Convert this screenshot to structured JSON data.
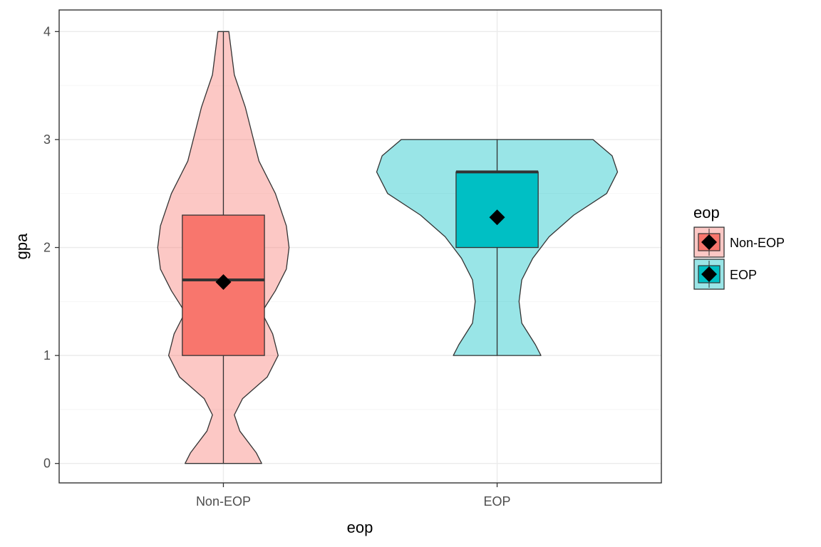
{
  "chart_data": {
    "type": "violin",
    "xlabel": "eop",
    "ylabel": "gpa",
    "categories": [
      "Non-EOP",
      "EOP"
    ],
    "ylim": [
      -0.18,
      4.2
    ],
    "yticks": [
      0,
      1,
      2,
      3,
      4
    ],
    "grid": true,
    "legend": {
      "title": "eop",
      "placement": "right",
      "entries": [
        "Non-EOP",
        "EOP"
      ]
    },
    "series": [
      {
        "name": "Non-EOP",
        "color": "#F8766D",
        "violin": {
          "y": [
            0.0,
            0.1,
            0.3,
            0.45,
            0.6,
            0.8,
            1.0,
            1.2,
            1.4,
            1.6,
            1.8,
            2.0,
            2.2,
            2.5,
            2.8,
            3.0,
            3.3,
            3.6,
            4.0
          ],
          "half_width": [
            0.14,
            0.12,
            0.06,
            0.04,
            0.07,
            0.16,
            0.2,
            0.18,
            0.14,
            0.19,
            0.23,
            0.24,
            0.23,
            0.19,
            0.13,
            0.11,
            0.08,
            0.04,
            0.02
          ]
        },
        "box": {
          "min": 0,
          "q1": 1.0,
          "median": 1.7,
          "q3": 2.3,
          "max": 4.0
        },
        "mean": 1.68
      },
      {
        "name": "EOP",
        "color": "#00BFC4",
        "violin": {
          "y": [
            1.0,
            1.1,
            1.3,
            1.5,
            1.7,
            1.9,
            2.1,
            2.3,
            2.5,
            2.7,
            2.85,
            3.0
          ],
          "half_width": [
            0.16,
            0.14,
            0.09,
            0.08,
            0.09,
            0.13,
            0.19,
            0.28,
            0.4,
            0.44,
            0.42,
            0.35
          ]
        },
        "box": {
          "min": 1.0,
          "q1": 2.0,
          "median": 2.7,
          "q3": 2.7,
          "max": 3.0
        },
        "mean": 2.28
      }
    ]
  }
}
